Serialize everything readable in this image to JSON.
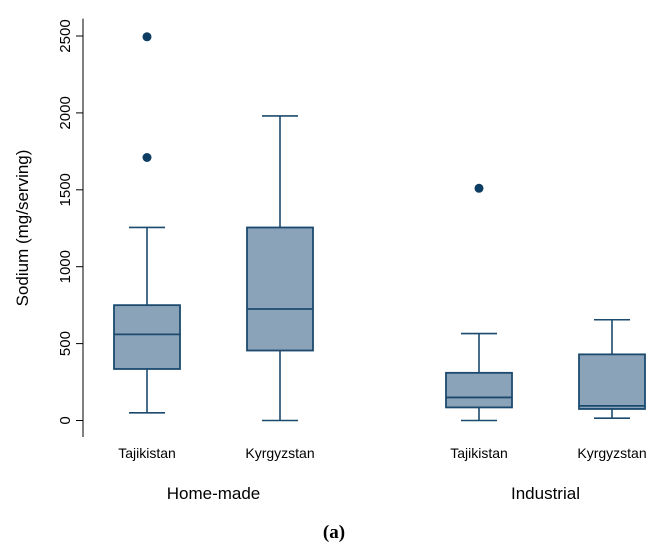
{
  "chart_data": {
    "type": "boxplot",
    "ylabel": "Sodium (mg/serving)",
    "ylim": [
      0,
      2600
    ],
    "yticks": [
      0,
      500,
      1000,
      1500,
      2000,
      2500
    ],
    "grid": false,
    "groups": [
      "Home-made",
      "Industrial"
    ],
    "colors": {
      "fill": "#8aa3b8",
      "stroke": "#1b4a6e",
      "outlier": "#0d3d62"
    },
    "boxes": [
      {
        "group": "Home-made",
        "label": "Tajikistan",
        "whisker_low": 50,
        "q1": 335,
        "median": 560,
        "q3": 750,
        "whisker_high": 1255,
        "outliers": [
          1710,
          2495
        ]
      },
      {
        "group": "Home-made",
        "label": "Kyrgyzstan",
        "whisker_low": 0,
        "q1": 455,
        "median": 725,
        "q3": 1255,
        "whisker_high": 1980,
        "outliers": []
      },
      {
        "group": "Industrial",
        "label": "Tajikistan",
        "whisker_low": 0,
        "q1": 85,
        "median": 150,
        "q3": 310,
        "whisker_high": 565,
        "outliers": [
          1510
        ]
      },
      {
        "group": "Industrial",
        "label": "Kyrgyzstan",
        "whisker_low": 15,
        "q1": 75,
        "median": 95,
        "q3": 430,
        "whisker_high": 655,
        "outliers": []
      }
    ]
  },
  "panel_label": "(a)"
}
